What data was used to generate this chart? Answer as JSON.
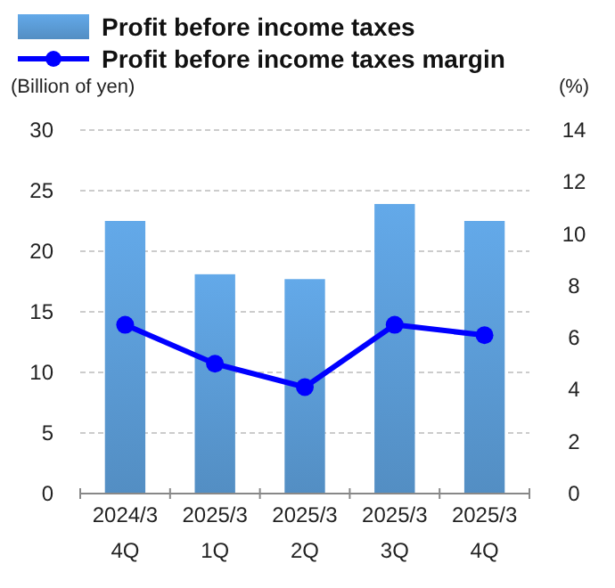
{
  "chart_data": {
    "type": "bar",
    "categories": [
      "2024/3\n4Q",
      "2025/3\n1Q",
      "2025/3\n2Q",
      "2025/3\n3Q",
      "2025/3\n4Q"
    ],
    "ylabel": "(Billion of yen)",
    "y2label": "(%)",
    "series": [
      {
        "name": "Profit before income taxes",
        "color": "#5b9bd5",
        "values": [
          22.5,
          18.1,
          17.7,
          23.9,
          22.5
        ]
      },
      {
        "name": "Profit before income taxes margin",
        "type": "line",
        "axis": "y2",
        "color": "#0000ff",
        "marker": "circle",
        "values": [
          6.5,
          5.0,
          4.1,
          6.5,
          6.1
        ]
      }
    ],
    "ylim": [
      0,
      30
    ],
    "yticks": [
      0,
      5,
      10,
      15,
      20,
      25,
      30
    ],
    "y2lim": [
      0,
      14
    ],
    "y2ticks": [
      0,
      2,
      4,
      6,
      8,
      10,
      12,
      14
    ],
    "grid": "y",
    "legend": "top left"
  }
}
